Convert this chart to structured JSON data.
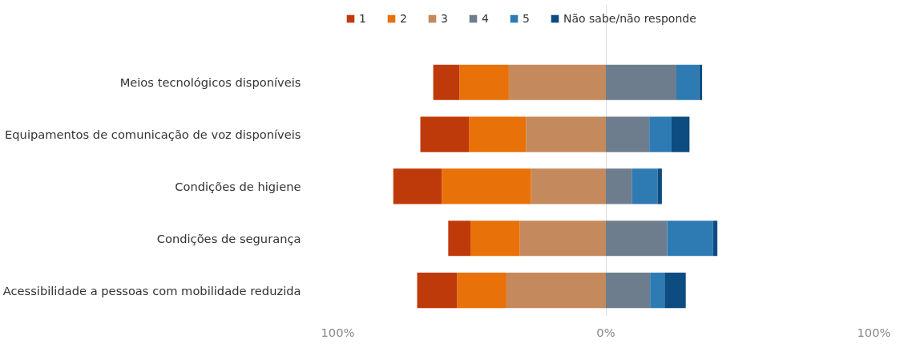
{
  "chart_data": {
    "type": "bar",
    "orientation": "horizontal",
    "stacked": true,
    "categories": [
      "Meios tecnológicos disponíveis",
      "Equipamentos de comunicação de voz disponíveis",
      "Condições de higiene",
      "Condições de segurança",
      "Acessibilidade a pessoas com mobilidade reduzida"
    ],
    "series": [
      {
        "name": "1",
        "color": "#bf3a0a",
        "values": [
          -9.8,
          -18.1,
          -18.1,
          -8.3,
          -14.9
        ]
      },
      {
        "name": "2",
        "color": "#e8710a",
        "values": [
          -18.4,
          -21.3,
          -33.3,
          -18.4,
          -18.4
        ]
      },
      {
        "name": "3",
        "color": "#c4895c",
        "values": [
          -36.2,
          -29.8,
          -27.9,
          -32.1,
          -37.1
        ]
      },
      {
        "name": "4",
        "color": "#6e7d8d",
        "values": [
          26.3,
          16.2,
          9.8,
          22.9,
          16.5
        ]
      },
      {
        "name": "5",
        "color": "#2e7bb4",
        "values": [
          8.6,
          8.3,
          9.5,
          17.1,
          5.4
        ]
      },
      {
        "name": "Não sabe/não responde",
        "color": "#0d4c80",
        "values": [
          1.0,
          6.7,
          1.6,
          1.6,
          7.9
        ]
      }
    ],
    "xlim": [
      -100,
      100
    ],
    "xticks": [
      {
        "value": -100,
        "label": "100%"
      },
      {
        "value": 0,
        "label": "0%"
      },
      {
        "value": 100,
        "label": "100%"
      }
    ],
    "grid": "x",
    "legend": "top left"
  }
}
